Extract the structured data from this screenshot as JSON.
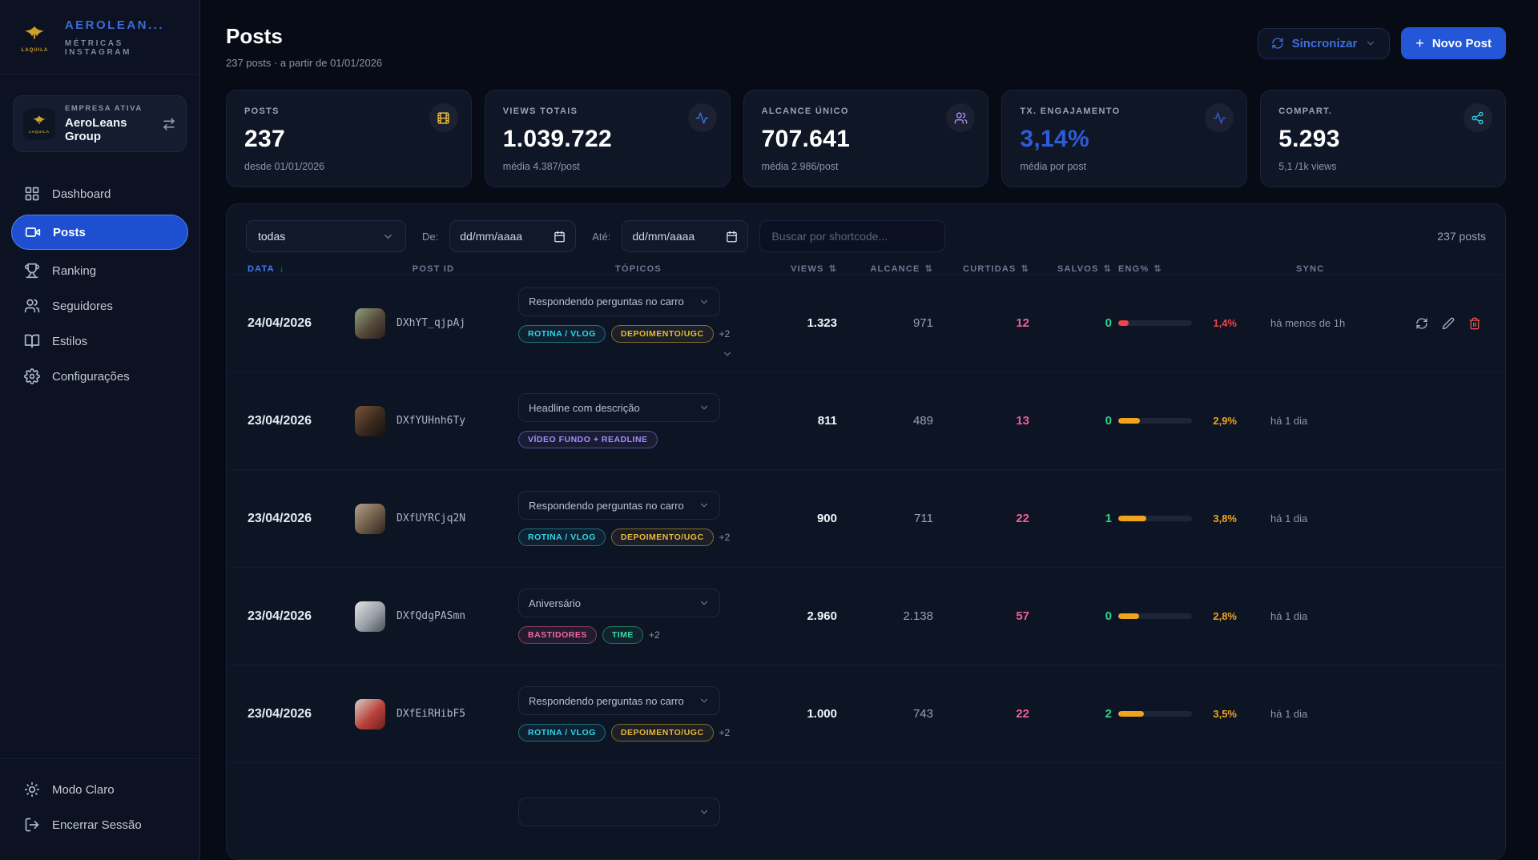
{
  "brand": {
    "name": "AEROLEAN...",
    "subtitle": "MÉTRICAS INSTAGRAM",
    "logo_word": "LAQUILA"
  },
  "company": {
    "label": "EMPRESA ATIVA",
    "name": "AeroLeans Group"
  },
  "sidebar": {
    "nav": [
      {
        "label": "Dashboard",
        "icon": "grid",
        "active": false
      },
      {
        "label": "Posts",
        "icon": "video",
        "active": true
      },
      {
        "label": "Ranking",
        "icon": "trophy",
        "active": false
      },
      {
        "label": "Seguidores",
        "icon": "users",
        "active": false
      },
      {
        "label": "Estilos",
        "icon": "book",
        "active": false
      },
      {
        "label": "Configurações",
        "icon": "gear",
        "active": false
      }
    ],
    "footer": [
      {
        "label": "Modo Claro",
        "icon": "sun"
      },
      {
        "label": "Encerrar Sessão",
        "icon": "logout"
      }
    ]
  },
  "header": {
    "title": "Posts",
    "subtitle": "237 posts · a partir de 01/01/2026",
    "sync_label": "Sincronizar",
    "new_post_label": "Novo Post",
    "new_post_plus": "+"
  },
  "stats": [
    {
      "label": "POSTS",
      "value": "237",
      "sub": "desde 01/01/2026",
      "icon": "film",
      "icon_color": "#e8b93c",
      "value_color": ""
    },
    {
      "label": "VIEWS TOTAIS",
      "value": "1.039.722",
      "sub": "média 4.387/post",
      "icon": "activity",
      "icon_color": "#3b6fe0",
      "value_color": ""
    },
    {
      "label": "ALCANCE ÚNICO",
      "value": "707.641",
      "sub": "média 2.986/post",
      "icon": "users",
      "icon_color": "#a78bfa",
      "value_color": ""
    },
    {
      "label": "TX. ENGAJAMENTO",
      "value": "3,14%",
      "sub": "média por post",
      "icon": "activity",
      "icon_color": "#2e5bd7",
      "value_color": "#2e5bd7"
    },
    {
      "label": "COMPART.",
      "value": "5.293",
      "sub": "5,1 /1k views",
      "icon": "share",
      "icon_color": "#2fc7e8",
      "value_color": ""
    }
  ],
  "filters": {
    "type_value": "todas",
    "from_label": "De:",
    "to_label": "Até:",
    "date_placeholder": "dd/mm/aaaa",
    "search_placeholder": "Buscar por shortcode...",
    "count": "237 posts"
  },
  "table": {
    "columns": [
      {
        "label": "DATA",
        "sort": "down",
        "active": true
      },
      {
        "label": "POST ID",
        "sort": "",
        "active": false
      },
      {
        "label": "TÓPICOS",
        "sort": "",
        "active": false
      },
      {
        "label": "VIEWS",
        "sort": "both",
        "active": false
      },
      {
        "label": "ALCANCE",
        "sort": "both",
        "active": false
      },
      {
        "label": "CURTIDAS",
        "sort": "both",
        "active": false
      },
      {
        "label": "SALVOS",
        "sort": "both",
        "active": false
      },
      {
        "label": "ENG%",
        "sort": "both",
        "active": false
      },
      {
        "label": "SYNC",
        "sort": "",
        "active": false
      }
    ],
    "rows": [
      {
        "date": "24/04/2026",
        "post_id": "DXhYT_qjpAj",
        "topic": "Respondendo perguntas no carro",
        "tags": [
          {
            "label": "ROTINA / VLOG",
            "color": "cyan"
          },
          {
            "label": "DEPOIMENTO/UGC",
            "color": "gold"
          }
        ],
        "more": "+2",
        "tag_chevron": true,
        "views": "1.323",
        "reach": "971",
        "likes": "12",
        "saves": "0",
        "eng": "1,4%",
        "eng_color": "red",
        "eng_fill": 14,
        "sync": "há menos de 1h",
        "actions": true,
        "thumb": [
          "#8fa27a",
          "#55483a",
          "#27221c"
        ]
      },
      {
        "date": "23/04/2026",
        "post_id": "DXfYUHnh6Ty",
        "topic": "Headline com descrição",
        "tags": [
          {
            "label": "VÍDEO FUNDO + READLINE",
            "color": "purple"
          }
        ],
        "more": "",
        "tag_chevron": false,
        "views": "811",
        "reach": "489",
        "likes": "13",
        "saves": "0",
        "eng": "2,9%",
        "eng_color": "orange",
        "eng_fill": 29,
        "sync": "há 1 dia",
        "actions": false,
        "thumb": [
          "#7c5436",
          "#3a2a1e",
          "#17110c"
        ]
      },
      {
        "date": "23/04/2026",
        "post_id": "DXfUYRCjq2N",
        "topic": "Respondendo perguntas no carro",
        "tags": [
          {
            "label": "ROTINA / VLOG",
            "color": "cyan"
          },
          {
            "label": "DEPOIMENTO/UGC",
            "color": "gold"
          }
        ],
        "more": "+2",
        "tag_chevron": false,
        "views": "900",
        "reach": "711",
        "likes": "22",
        "saves": "1",
        "eng": "3,8%",
        "eng_color": "orange",
        "eng_fill": 38,
        "sync": "há 1 dia",
        "actions": false,
        "thumb": [
          "#b3a18c",
          "#6e5b48",
          "#2d241c"
        ]
      },
      {
        "date": "23/04/2026",
        "post_id": "DXfQdgPASmn",
        "topic": "Aniversário",
        "tags": [
          {
            "label": "BASTIDORES",
            "color": "pink"
          },
          {
            "label": "TIME",
            "color": "green"
          }
        ],
        "more": "+2",
        "tag_chevron": false,
        "views": "2.960",
        "reach": "2.138",
        "likes": "57",
        "saves": "0",
        "eng": "2,8%",
        "eng_color": "orange",
        "eng_fill": 28,
        "sync": "há 1 dia",
        "actions": false,
        "thumb": [
          "#e3e4e1",
          "#9aa0a8",
          "#4a4f58"
        ]
      },
      {
        "date": "23/04/2026",
        "post_id": "DXfEiRHibF5",
        "topic": "Respondendo perguntas no carro",
        "tags": [
          {
            "label": "ROTINA / VLOG",
            "color": "cyan"
          },
          {
            "label": "DEPOIMENTO/UGC",
            "color": "gold"
          }
        ],
        "more": "+2",
        "tag_chevron": false,
        "views": "1.000",
        "reach": "743",
        "likes": "22",
        "saves": "2",
        "eng": "3,5%",
        "eng_color": "orange",
        "eng_fill": 35,
        "sync": "há 1 dia",
        "actions": false,
        "thumb": [
          "#d7d2c8",
          "#b8423a",
          "#6e1f1c"
        ]
      },
      {
        "partial": true,
        "date": "",
        "post_id": "",
        "topic": "",
        "tags": [],
        "more": "",
        "tag_chevron": false,
        "views": "",
        "reach": "",
        "likes": "",
        "saves": "",
        "eng": "",
        "eng_color": "",
        "eng_fill": 0,
        "sync": "",
        "actions": false
      }
    ]
  }
}
